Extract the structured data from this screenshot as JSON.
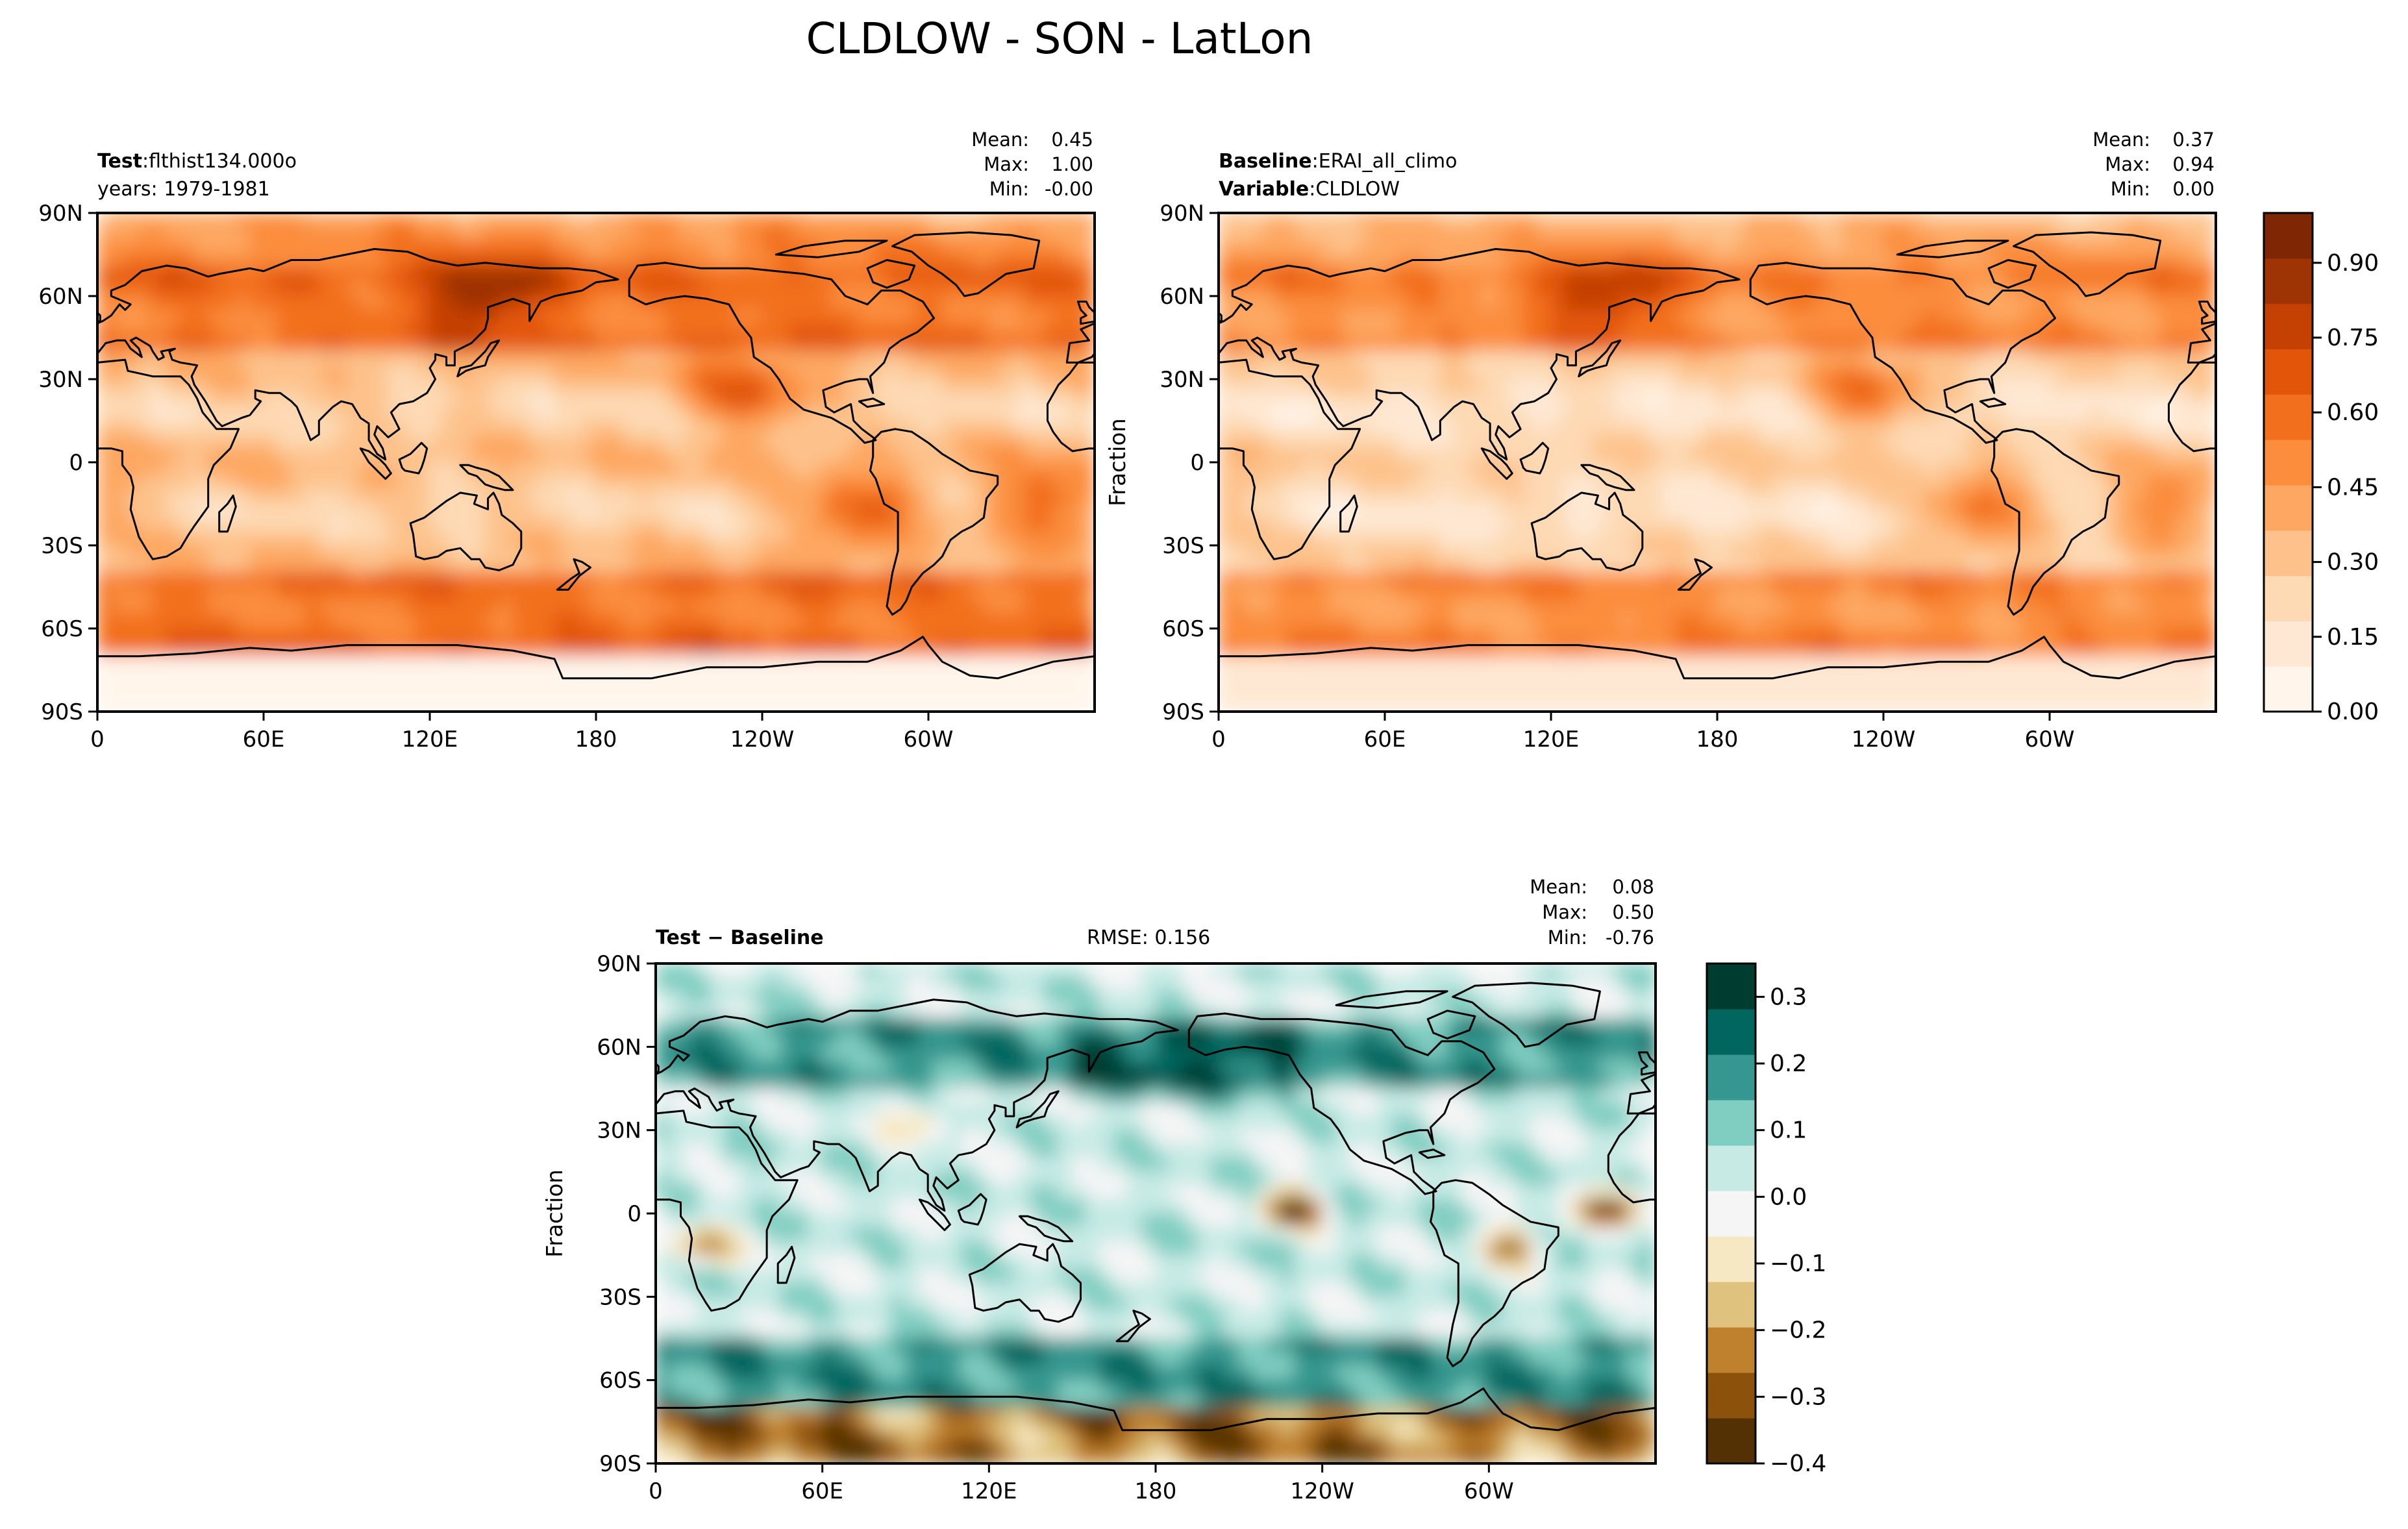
{
  "figure": {
    "title": "CLDLOW - SON - LatLon"
  },
  "colors": {
    "seq": [
      "#fff5eb",
      "#fee8d3",
      "#fdd9b4",
      "#fdc28c",
      "#fda762",
      "#fb8d3d",
      "#f2701d",
      "#e25609",
      "#c44103",
      "#9e3303",
      "#7f2704"
    ],
    "div": [
      "#543005",
      "#8c510a",
      "#bf812d",
      "#dfc27d",
      "#f6e8c3",
      "#f5f5f5",
      "#c7eae5",
      "#80cdc1",
      "#35978f",
      "#01665e",
      "#003c30"
    ]
  },
  "chart_data": [
    {
      "type": "heatmap",
      "panel": "test",
      "header": [
        {
          "bold": "Test",
          "rest": "flthist134.000o"
        },
        {
          "bold": "",
          "rest": "years: 1979-1981"
        }
      ],
      "stats": [
        {
          "label": "Mean:",
          "value": "0.45"
        },
        {
          "label": "Max:",
          "value": "1.00"
        },
        {
          "label": "Min:",
          "value": "-0.00"
        }
      ],
      "ylabel": "",
      "xticks": [
        "0",
        "60E",
        "120E",
        "180",
        "120W",
        "60W"
      ],
      "yticks": [
        "90N",
        "60N",
        "30N",
        "0",
        "30S",
        "60S",
        "90S"
      ],
      "xlim": [
        0,
        360
      ],
      "ylim": [
        -90,
        90
      ],
      "value_range": [
        0,
        1.0
      ]
    },
    {
      "type": "heatmap",
      "panel": "baseline",
      "header": [
        {
          "bold": "Baseline",
          "rest": "ERAI_all_climo"
        },
        {
          "bold": "Variable",
          "rest": "CLDLOW"
        }
      ],
      "stats": [
        {
          "label": "Mean:",
          "value": "0.37"
        },
        {
          "label": "Max:",
          "value": "0.94"
        },
        {
          "label": "Min:",
          "value": "0.00"
        }
      ],
      "ylabel": "Fraction",
      "xticks": [
        "0",
        "60E",
        "120E",
        "180",
        "120W",
        "60W"
      ],
      "yticks": [
        "90N",
        "60N",
        "30N",
        "0",
        "30S",
        "60S",
        "90S"
      ],
      "xlim": [
        0,
        360
      ],
      "ylim": [
        -90,
        90
      ],
      "value_range": [
        0,
        0.94
      ],
      "colorbar": {
        "ticks": [
          "0.00",
          "0.15",
          "0.30",
          "0.45",
          "0.60",
          "0.75",
          "0.90"
        ],
        "range": [
          0,
          1.0
        ]
      }
    },
    {
      "type": "heatmap",
      "panel": "diff",
      "header": [
        {
          "bold": "Test − Baseline",
          "rest": ""
        }
      ],
      "rmse": "RMSE: 0.156",
      "stats": [
        {
          "label": "Mean:",
          "value": "0.08"
        },
        {
          "label": "Max:",
          "value": "0.50"
        },
        {
          "label": "Min:",
          "value": "-0.76"
        }
      ],
      "ylabel": "Fraction",
      "xticks": [
        "0",
        "60E",
        "120E",
        "180",
        "120W",
        "60W"
      ],
      "yticks": [
        "90N",
        "60N",
        "30N",
        "0",
        "30S",
        "60S",
        "90S"
      ],
      "xlim": [
        0,
        360
      ],
      "ylim": [
        -90,
        90
      ],
      "value_range": [
        -0.76,
        0.5
      ],
      "colorbar": {
        "ticks": [
          "0.3",
          "0.2",
          "0.1",
          "0.0",
          "−0.1",
          "−0.2",
          "−0.3",
          "−0.4"
        ],
        "range": [
          -0.4,
          0.35
        ]
      }
    }
  ]
}
